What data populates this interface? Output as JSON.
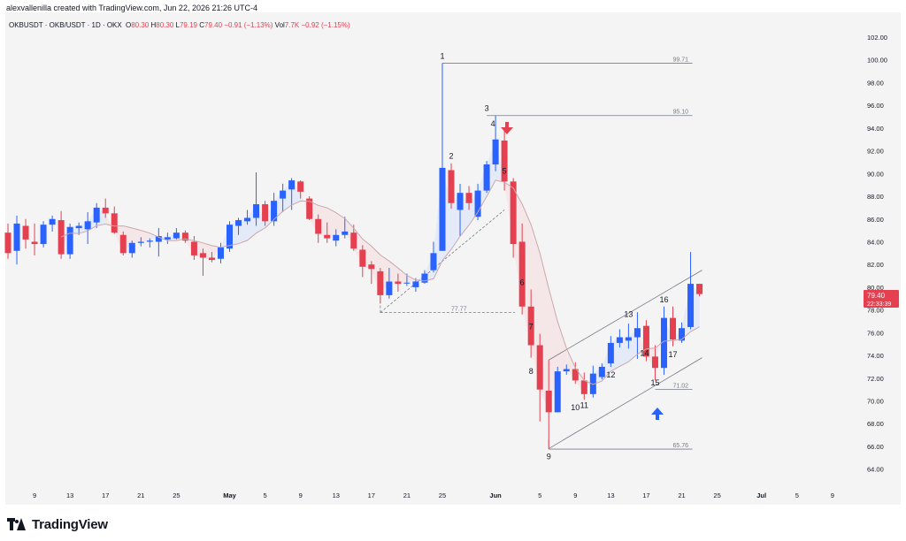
{
  "header": {
    "credit": "alexvallenilla created with TradingView.com, Jun 22, 2026 21:26 UTC-4"
  },
  "legend": {
    "symbol": "OKBUSDT · OKB/USDT · 1D · OKX",
    "o_label": "O",
    "o_value": "80.30",
    "h_label": "H",
    "h_value": "80.30",
    "l_label": "L",
    "l_value": "79.19",
    "c_label": "C",
    "c_value": "79.40",
    "change": "−0.91 (−1.13%)",
    "vol_label": "Vol",
    "vol_value": "7.7K",
    "vol_change": "−0.92 (−1.15%)"
  },
  "price_tag": {
    "price": "79.40",
    "countdown": "22:33:39"
  },
  "colors": {
    "up": "#2962ff",
    "down": "#e5404f",
    "ma": "#c9a9ab",
    "band": "#d7e2f7",
    "band2": "#f6dadd",
    "grid_text": "#131722",
    "line": "#787b86"
  },
  "chart_data": {
    "type": "candlestick",
    "symbol": "OKBUSDT",
    "timeframe": "1D",
    "y_axis": {
      "min": 62.8,
      "max": 103.0,
      "ticks": [
        "102.00",
        "100.00",
        "98.00",
        "96.00",
        "94.00",
        "92.00",
        "90.00",
        "88.00",
        "86.00",
        "84.00",
        "82.00",
        "80.00",
        "78.00",
        "76.00",
        "74.00",
        "72.00",
        "70.00",
        "68.00",
        "66.00",
        "64.00"
      ]
    },
    "x_axis": {
      "labels": [
        "9",
        "13",
        "17",
        "21",
        "25",
        "May",
        "5",
        "9",
        "13",
        "17",
        "21",
        "25",
        "Jun",
        "5",
        "9",
        "13",
        "17",
        "21",
        "25",
        "Jul",
        "5",
        "9"
      ]
    },
    "candles": [
      {
        "o": 84.8,
        "h": 85.6,
        "l": 82.5,
        "c": 83.0
      },
      {
        "o": 83.2,
        "h": 86.3,
        "l": 82.0,
        "c": 85.6
      },
      {
        "o": 85.4,
        "h": 86.0,
        "l": 83.4,
        "c": 84.2
      },
      {
        "o": 84.0,
        "h": 85.6,
        "l": 82.8,
        "c": 83.8
      },
      {
        "o": 83.8,
        "h": 85.8,
        "l": 83.5,
        "c": 85.5
      },
      {
        "o": 85.5,
        "h": 86.3,
        "l": 84.9,
        "c": 86.0
      },
      {
        "o": 85.9,
        "h": 86.7,
        "l": 82.5,
        "c": 82.9
      },
      {
        "o": 82.9,
        "h": 85.6,
        "l": 82.5,
        "c": 85.3
      },
      {
        "o": 85.2,
        "h": 85.7,
        "l": 84.6,
        "c": 85.4
      },
      {
        "o": 85.1,
        "h": 86.6,
        "l": 83.8,
        "c": 85.8
      },
      {
        "o": 85.7,
        "h": 87.4,
        "l": 85.2,
        "c": 87.0
      },
      {
        "o": 87.0,
        "h": 87.8,
        "l": 86.1,
        "c": 86.5
      },
      {
        "o": 86.5,
        "h": 87.1,
        "l": 84.7,
        "c": 84.8
      },
      {
        "o": 84.6,
        "h": 84.9,
        "l": 82.8,
        "c": 83.0
      },
      {
        "o": 83.0,
        "h": 84.1,
        "l": 82.6,
        "c": 83.9
      },
      {
        "o": 83.9,
        "h": 84.4,
        "l": 83.6,
        "c": 84.0
      },
      {
        "o": 84.0,
        "h": 84.3,
        "l": 83.5,
        "c": 84.1
      },
      {
        "o": 84.0,
        "h": 85.2,
        "l": 82.7,
        "c": 84.5
      },
      {
        "o": 84.2,
        "h": 84.8,
        "l": 83.8,
        "c": 84.4
      },
      {
        "o": 84.3,
        "h": 85.2,
        "l": 84.2,
        "c": 84.8
      },
      {
        "o": 84.8,
        "h": 85.0,
        "l": 83.9,
        "c": 84.1
      },
      {
        "o": 84.0,
        "h": 84.5,
        "l": 82.4,
        "c": 82.8
      },
      {
        "o": 83.0,
        "h": 83.4,
        "l": 81.0,
        "c": 82.6
      },
      {
        "o": 82.6,
        "h": 83.1,
        "l": 82.2,
        "c": 82.4
      },
      {
        "o": 82.5,
        "h": 83.9,
        "l": 82.1,
        "c": 83.5
      },
      {
        "o": 83.4,
        "h": 85.8,
        "l": 83.1,
        "c": 85.5
      },
      {
        "o": 85.4,
        "h": 86.1,
        "l": 84.6,
        "c": 85.9
      },
      {
        "o": 85.8,
        "h": 86.8,
        "l": 85.5,
        "c": 86.1
      },
      {
        "o": 86.1,
        "h": 90.1,
        "l": 85.4,
        "c": 87.3
      },
      {
        "o": 87.3,
        "h": 87.6,
        "l": 85.4,
        "c": 85.8
      },
      {
        "o": 85.8,
        "h": 88.3,
        "l": 85.4,
        "c": 87.6
      },
      {
        "o": 87.8,
        "h": 89.1,
        "l": 86.6,
        "c": 88.5
      },
      {
        "o": 88.6,
        "h": 89.6,
        "l": 86.8,
        "c": 89.4
      },
      {
        "o": 89.3,
        "h": 89.4,
        "l": 87.8,
        "c": 88.4
      },
      {
        "o": 87.8,
        "h": 88.0,
        "l": 85.9,
        "c": 86.0
      },
      {
        "o": 86.0,
        "h": 86.4,
        "l": 83.9,
        "c": 84.7
      },
      {
        "o": 84.6,
        "h": 85.7,
        "l": 83.9,
        "c": 84.3
      },
      {
        "o": 84.1,
        "h": 85.1,
        "l": 83.6,
        "c": 84.6
      },
      {
        "o": 84.6,
        "h": 86.2,
        "l": 84.3,
        "c": 84.9
      },
      {
        "o": 84.8,
        "h": 85.5,
        "l": 83.2,
        "c": 83.4
      },
      {
        "o": 83.3,
        "h": 83.7,
        "l": 80.9,
        "c": 81.8
      },
      {
        "o": 82.0,
        "h": 82.3,
        "l": 80.3,
        "c": 81.6
      },
      {
        "o": 81.4,
        "h": 81.7,
        "l": 78.6,
        "c": 79.3
      },
      {
        "o": 79.3,
        "h": 81.7,
        "l": 79.0,
        "c": 80.5
      },
      {
        "o": 80.5,
        "h": 81.2,
        "l": 79.6,
        "c": 80.3
      },
      {
        "o": 80.4,
        "h": 81.2,
        "l": 80.1,
        "c": 80.4
      },
      {
        "o": 80.0,
        "h": 80.8,
        "l": 79.6,
        "c": 80.5
      },
      {
        "o": 80.4,
        "h": 81.5,
        "l": 80.3,
        "c": 81.2
      },
      {
        "o": 81.5,
        "h": 84.0,
        "l": 81.3,
        "c": 83.0
      },
      {
        "o": 83.2,
        "h": 99.7,
        "l": 83.2,
        "c": 90.5
      },
      {
        "o": 90.3,
        "h": 90.9,
        "l": 86.9,
        "c": 87.4
      },
      {
        "o": 86.8,
        "h": 89.1,
        "l": 84.5,
        "c": 88.3
      },
      {
        "o": 88.3,
        "h": 88.9,
        "l": 86.8,
        "c": 87.4
      },
      {
        "o": 86.2,
        "h": 89.1,
        "l": 85.9,
        "c": 88.5
      },
      {
        "o": 88.5,
        "h": 91.1,
        "l": 88.3,
        "c": 90.8
      },
      {
        "o": 90.8,
        "h": 95.1,
        "l": 90.2,
        "c": 93.0
      },
      {
        "o": 92.9,
        "h": 94.0,
        "l": 88.5,
        "c": 89.3
      },
      {
        "o": 89.3,
        "h": 89.6,
        "l": 82.6,
        "c": 83.8
      },
      {
        "o": 84.0,
        "h": 85.6,
        "l": 77.6,
        "c": 78.3
      },
      {
        "o": 78.3,
        "h": 79.8,
        "l": 73.8,
        "c": 74.9
      },
      {
        "o": 74.9,
        "h": 75.9,
        "l": 68.2,
        "c": 71.0
      },
      {
        "o": 70.9,
        "h": 73.6,
        "l": 65.8,
        "c": 69.0
      },
      {
        "o": 69.0,
        "h": 73.0,
        "l": 69.0,
        "c": 72.6
      },
      {
        "o": 72.6,
        "h": 73.2,
        "l": 72.3,
        "c": 72.8
      },
      {
        "o": 72.8,
        "h": 73.4,
        "l": 71.5,
        "c": 71.8
      },
      {
        "o": 71.8,
        "h": 72.5,
        "l": 70.1,
        "c": 70.6
      },
      {
        "o": 70.6,
        "h": 73.1,
        "l": 70.3,
        "c": 72.4
      },
      {
        "o": 72.1,
        "h": 73.3,
        "l": 71.9,
        "c": 73.0
      },
      {
        "o": 73.3,
        "h": 75.7,
        "l": 73.0,
        "c": 75.1
      },
      {
        "o": 75.1,
        "h": 76.3,
        "l": 74.7,
        "c": 75.6
      },
      {
        "o": 75.3,
        "h": 76.8,
        "l": 74.6,
        "c": 75.6
      },
      {
        "o": 75.6,
        "h": 77.8,
        "l": 73.7,
        "c": 76.4
      },
      {
        "o": 76.6,
        "h": 77.1,
        "l": 73.5,
        "c": 73.9
      },
      {
        "o": 73.9,
        "h": 74.9,
        "l": 71.8,
        "c": 72.9
      },
      {
        "o": 72.9,
        "h": 78.3,
        "l": 72.3,
        "c": 77.3
      },
      {
        "o": 77.3,
        "h": 78.3,
        "l": 74.8,
        "c": 75.4
      },
      {
        "o": 75.3,
        "h": 76.9,
        "l": 75.1,
        "c": 76.4
      },
      {
        "o": 76.5,
        "h": 83.1,
        "l": 76.3,
        "c": 80.3
      },
      {
        "o": 80.3,
        "h": 80.3,
        "l": 79.2,
        "c": 79.4
      }
    ],
    "annotations": [
      {
        "label": "1",
        "i": 49,
        "price": 99.7,
        "pos": "above"
      },
      {
        "label": "2",
        "i": 50,
        "price": 90.9,
        "pos": "above"
      },
      {
        "label": "3",
        "i": 54,
        "price": 95.1,
        "pos": "above"
      },
      {
        "label": "4",
        "i": 55,
        "price": 94.0,
        "pos": "above-left"
      },
      {
        "label": "5",
        "i": 56,
        "price": 89.6,
        "pos": "above"
      },
      {
        "label": "6",
        "i": 58,
        "price": 79.8,
        "pos": "above"
      },
      {
        "label": "7",
        "i": 59,
        "price": 75.9,
        "pos": "above"
      },
      {
        "label": "8",
        "i": 60,
        "price": 72.6,
        "pos": "left"
      },
      {
        "label": "9",
        "i": 61,
        "price": 65.8,
        "pos": "below"
      },
      {
        "label": "10",
        "i": 64,
        "price": 70.1,
        "pos": "below"
      },
      {
        "label": "11",
        "i": 65,
        "price": 70.3,
        "pos": "below"
      },
      {
        "label": "12",
        "i": 68,
        "price": 73.0,
        "pos": "below"
      },
      {
        "label": "13",
        "i": 70,
        "price": 77.0,
        "pos": "above"
      },
      {
        "label": "14",
        "i": 71,
        "price": 74.2,
        "pos": "right"
      },
      {
        "label": "15",
        "i": 73,
        "price": 72.3,
        "pos": "below"
      },
      {
        "label": "16",
        "i": 74,
        "price": 78.3,
        "pos": "above"
      },
      {
        "label": "17",
        "i": 75,
        "price": 74.8,
        "pos": "below"
      }
    ],
    "levels": [
      {
        "label": "99.71",
        "price": 99.71
      },
      {
        "label": "95.10",
        "price": 95.1
      },
      {
        "label": "77.77",
        "price": 77.77
      },
      {
        "label": "71.02",
        "price": 71.02
      },
      {
        "label": "65.76",
        "price": 65.76
      }
    ]
  },
  "footer": {
    "brand": "TradingView"
  }
}
